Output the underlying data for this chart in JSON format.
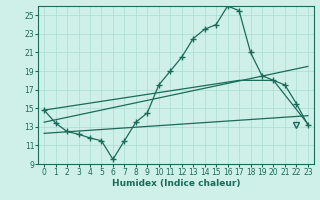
{
  "title": "",
  "xlabel": "Humidex (Indice chaleur)",
  "ylabel": "",
  "bg_color": "#cff0e8",
  "line_color": "#1a6b5a",
  "grid_color": "#a8ddd4",
  "xlim": [
    -0.5,
    23.5
  ],
  "ylim": [
    9,
    26
  ],
  "yticks": [
    9,
    11,
    13,
    15,
    17,
    19,
    21,
    23,
    25
  ],
  "xticks": [
    0,
    1,
    2,
    3,
    4,
    5,
    6,
    7,
    8,
    9,
    10,
    11,
    12,
    13,
    14,
    15,
    16,
    17,
    18,
    19,
    20,
    21,
    22,
    23
  ],
  "curve1_x": [
    0,
    1,
    2,
    3,
    4,
    5,
    6,
    7,
    8,
    9,
    10,
    11,
    12,
    13,
    14,
    15,
    16,
    17,
    18,
    19,
    20,
    21,
    22,
    23
  ],
  "curve1_y": [
    14.8,
    13.4,
    12.5,
    12.2,
    11.8,
    11.5,
    9.5,
    11.5,
    13.5,
    14.5,
    17.5,
    19.0,
    20.5,
    22.5,
    23.5,
    24.0,
    26.0,
    25.5,
    21.0,
    18.5,
    18.0,
    17.5,
    15.5,
    13.2
  ],
  "line2_x": [
    0,
    23
  ],
  "line2_y": [
    13.5,
    19.5
  ],
  "line3_x": [
    0,
    23
  ],
  "line3_y": [
    12.3,
    14.2
  ],
  "line4_x": [
    0,
    17,
    20,
    23
  ],
  "line4_y": [
    14.8,
    18.0,
    18.0,
    13.3
  ],
  "open_triangle_x": 22,
  "open_triangle_y": 13.2
}
